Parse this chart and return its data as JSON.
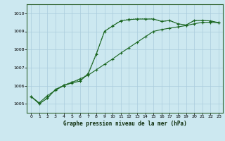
{
  "title": "Graphe pression niveau de la mer (hPa)",
  "bg_color": "#cce8f0",
  "grid_color": "#aaccdd",
  "line_color": "#1a6620",
  "xlim": [
    -0.5,
    23.5
  ],
  "ylim": [
    1004.5,
    1010.5
  ],
  "yticks": [
    1005,
    1006,
    1007,
    1008,
    1009,
    1010
  ],
  "xticks": [
    0,
    1,
    2,
    3,
    4,
    5,
    6,
    7,
    8,
    9,
    10,
    11,
    12,
    13,
    14,
    15,
    16,
    17,
    18,
    19,
    20,
    21,
    22,
    23
  ],
  "series1_x": [
    0,
    1,
    2,
    3,
    4,
    5,
    6,
    7,
    8,
    9,
    10,
    11,
    12,
    13,
    14,
    15,
    16,
    17,
    18,
    19,
    20,
    21,
    22,
    23
  ],
  "series1_y": [
    1005.4,
    1005.0,
    1005.3,
    1005.8,
    1006.0,
    1006.15,
    1006.25,
    1006.65,
    1007.75,
    1009.0,
    1009.3,
    1009.58,
    1009.65,
    1009.68,
    1009.68,
    1009.68,
    1009.55,
    1009.6,
    1009.42,
    1009.35,
    1009.6,
    1009.6,
    1009.58,
    1009.48
  ],
  "series2_x": [
    0,
    1,
    2,
    3,
    4,
    5,
    6,
    7,
    8,
    9,
    10,
    11,
    12,
    13,
    14,
    15,
    16,
    17,
    18,
    19,
    20,
    21,
    22,
    23
  ],
  "series2_y": [
    1005.4,
    1005.0,
    1005.35,
    1005.78,
    1006.05,
    1006.2,
    1006.3,
    1006.68,
    1007.78,
    1009.02,
    1009.32,
    1009.6,
    1009.67,
    1009.7,
    1009.7,
    1009.7,
    1009.55,
    1009.6,
    1009.42,
    1009.35,
    1009.6,
    1009.6,
    1009.58,
    1009.48
  ],
  "series3_x": [
    0,
    1,
    2,
    3,
    4,
    5,
    6,
    7,
    8,
    9,
    10,
    11,
    12,
    13,
    14,
    15,
    16,
    17,
    18,
    19,
    20,
    21,
    22,
    23
  ],
  "series3_y": [
    1005.4,
    1005.05,
    1005.45,
    1005.75,
    1006.0,
    1006.18,
    1006.38,
    1006.58,
    1006.88,
    1007.18,
    1007.48,
    1007.8,
    1008.1,
    1008.4,
    1008.7,
    1009.0,
    1009.1,
    1009.18,
    1009.25,
    1009.32,
    1009.42,
    1009.5,
    1009.5,
    1009.48
  ]
}
